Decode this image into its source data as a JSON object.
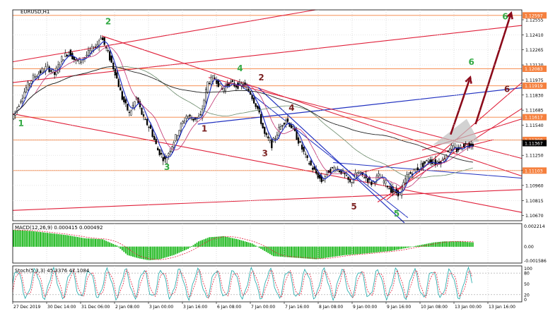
{
  "symbol_label": "EURUSD,H1",
  "chart_data": {
    "type": "candlestick",
    "symbol": "EURUSD",
    "timeframe": "H1",
    "price_axis": {
      "min": 1.1062,
      "max": 1.1265,
      "ticks": [
        "1.12555",
        "1.12410",
        "1.12265",
        "1.12120",
        "1.11975",
        "1.11830",
        "1.11685",
        "1.11540",
        "1.11395",
        "1.11250",
        "1.11105",
        "1.10960",
        "1.10815",
        "1.10670"
      ],
      "badges": [
        {
          "label": "1.12597",
          "color": "#f5803e"
        },
        {
          "label": "1.12083",
          "color": "#f5803e"
        },
        {
          "label": "1.11919",
          "color": "#f5803e"
        },
        {
          "label": "1.11617",
          "color": "#f5803e"
        },
        {
          "label": "1.11398",
          "color": "#f5803e"
        },
        {
          "label": "1.11367",
          "color": "#000000"
        },
        {
          "label": "1.11103",
          "color": "#f5803e"
        }
      ]
    },
    "time_axis_labels": [
      "27 Dec 2019",
      "30 Dec 14:00",
      "31 Dec 06:00",
      "2 Jan 08:00",
      "3 Jan 00:00",
      "3 Jan 16:00",
      "6 Jan 08:00",
      "7 Jan 00:00",
      "7 Jan 16:00",
      "8 Jan 08:00",
      "9 Jan 00:00",
      "9 Jan 16:00",
      "10 Jan 08:00",
      "13 Jan 00:00",
      "13 Jan 16:00"
    ],
    "horizontal_levels": [
      1.12597,
      1.12083,
      1.11919,
      1.11617,
      1.11398,
      1.11103
    ],
    "price_path": [
      [
        0,
        1.116
      ],
      [
        4,
        1.1175
      ],
      [
        8,
        1.119
      ],
      [
        12,
        1.12
      ],
      [
        16,
        1.1205
      ],
      [
        20,
        1.121
      ],
      [
        24,
        1.1203
      ],
      [
        28,
        1.1218
      ],
      [
        32,
        1.1225
      ],
      [
        36,
        1.1215
      ],
      [
        40,
        1.1218
      ],
      [
        44,
        1.1225
      ],
      [
        48,
        1.1232
      ],
      [
        50,
        1.124
      ],
      [
        54,
        1.1223
      ],
      [
        58,
        1.1205
      ],
      [
        62,
        1.118
      ],
      [
        66,
        1.1165
      ],
      [
        70,
        1.118
      ],
      [
        74,
        1.116
      ],
      [
        78,
        1.115
      ],
      [
        82,
        1.113
      ],
      [
        86,
        1.112
      ],
      [
        90,
        1.1135
      ],
      [
        94,
        1.115
      ],
      [
        98,
        1.1163
      ],
      [
        102,
        1.116
      ],
      [
        106,
        1.1162
      ],
      [
        110,
        1.1195
      ],
      [
        114,
        1.12
      ],
      [
        118,
        1.1188
      ],
      [
        122,
        1.1195
      ],
      [
        126,
        1.1192
      ],
      [
        130,
        1.1193
      ],
      [
        134,
        1.1185
      ],
      [
        138,
        1.117
      ],
      [
        142,
        1.1145
      ],
      [
        146,
        1.1135
      ],
      [
        150,
        1.115
      ],
      [
        154,
        1.116
      ],
      [
        158,
        1.115
      ],
      [
        162,
        1.1135
      ],
      [
        166,
        1.112
      ],
      [
        170,
        1.111
      ],
      [
        174,
        1.11
      ],
      [
        178,
        1.111
      ],
      [
        182,
        1.1113
      ],
      [
        186,
        1.1108
      ],
      [
        190,
        1.1098
      ],
      [
        194,
        1.1108
      ],
      [
        198,
        1.1105
      ],
      [
        202,
        1.1098
      ],
      [
        206,
        1.1105
      ],
      [
        210,
        1.1098
      ],
      [
        214,
        1.109
      ],
      [
        218,
        1.1088
      ],
      [
        222,
        1.1105
      ],
      [
        226,
        1.111
      ],
      [
        230,
        1.1115
      ],
      [
        234,
        1.112
      ],
      [
        238,
        1.1118
      ],
      [
        242,
        1.112
      ],
      [
        246,
        1.1133
      ],
      [
        250,
        1.113
      ],
      [
        254,
        1.1135
      ],
      [
        258,
        1.1136
      ]
    ],
    "wave_labels": [
      {
        "text": "1",
        "color": "#33aa44",
        "t": 3,
        "p": 1.1153
      },
      {
        "text": "2",
        "color": "#33aa44",
        "t": 52,
        "p": 1.1251
      },
      {
        "text": "3",
        "color": "#33aa44",
        "t": 85,
        "p": 1.1111
      },
      {
        "text": "4",
        "color": "#33aa44",
        "t": 126,
        "p": 1.1206
      },
      {
        "text": "5",
        "color": "#33aa44",
        "t": 214,
        "p": 1.1066
      },
      {
        "text": "6",
        "color": "#33aa44",
        "t": 275,
        "p": 1.1256
      },
      {
        "text": "6",
        "color": "#33aa44",
        "t": 256,
        "p": 1.1212
      },
      {
        "text": "1",
        "color": "#7a1f1f",
        "t": 106,
        "p": 1.1148
      },
      {
        "text": "2",
        "color": "#7a1f1f",
        "t": 138,
        "p": 1.1197
      },
      {
        "text": "3",
        "color": "#7a1f1f",
        "t": 140,
        "p": 1.1124
      },
      {
        "text": "4",
        "color": "#7a1f1f",
        "t": 155,
        "p": 1.1168
      },
      {
        "text": "5",
        "color": "#7a1f1f",
        "t": 190,
        "p": 1.1073
      },
      {
        "text": "6",
        "color": "#7a1f1f",
        "t": 276,
        "p": 1.1186
      }
    ],
    "indicators": [
      {
        "name": "MACD(12,26,9)",
        "readout": "MACD(12,26,9) 0.000415 0.000492",
        "range": [
          -0.001586,
          0.002214
        ],
        "ticks": [
          "0.002214",
          "0.00",
          "-0.001586"
        ],
        "histogram": [
          [
            0,
            0.0016
          ],
          [
            10,
            0.0015
          ],
          [
            20,
            0.0013
          ],
          [
            30,
            0.0011
          ],
          [
            40,
            0.0008
          ],
          [
            50,
            0.0007
          ],
          [
            58,
            0.0001
          ],
          [
            64,
            -0.0008
          ],
          [
            70,
            -0.0011
          ],
          [
            76,
            -0.0013
          ],
          [
            82,
            -0.0012
          ],
          [
            90,
            -0.0008
          ],
          [
            98,
            -0.0002
          ],
          [
            104,
            0.0005
          ],
          [
            110,
            0.0009
          ],
          [
            118,
            0.001
          ],
          [
            126,
            0.0007
          ],
          [
            134,
            0.0003
          ],
          [
            140,
            -0.0003
          ],
          [
            146,
            -0.0009
          ],
          [
            154,
            -0.001
          ],
          [
            162,
            -0.0011
          ],
          [
            170,
            -0.0012
          ],
          [
            178,
            -0.001
          ],
          [
            186,
            -0.0008
          ],
          [
            194,
            -0.0007
          ],
          [
            200,
            -0.0006
          ],
          [
            206,
            -0.0005
          ],
          [
            212,
            -0.0004
          ],
          [
            218,
            -0.0002
          ],
          [
            224,
            0.0
          ],
          [
            230,
            0.0002
          ],
          [
            236,
            0.0004
          ],
          [
            242,
            0.0005
          ],
          [
            250,
            0.0005
          ],
          [
            258,
            0.0004
          ]
        ]
      },
      {
        "name": "Stoch(5,3,3)",
        "readout": "Stoch(5,3,3) 45.3376 47.1084",
        "range": [
          0,
          100
        ],
        "ticks": [
          "100",
          "80",
          "50",
          "20",
          "0"
        ],
        "levels": [
          20,
          80
        ]
      }
    ]
  }
}
